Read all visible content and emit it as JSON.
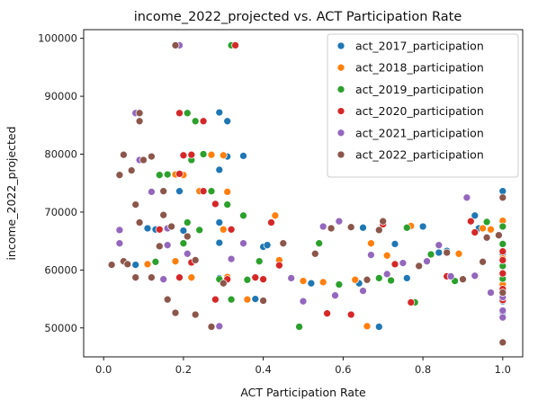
{
  "chart_data": {
    "type": "scatter",
    "title": "income_2022_projected vs. ACT Participation Rate",
    "xlabel": "ACT Participation Rate",
    "ylabel": "income_2022_projected",
    "xlim": [
      -0.05,
      1.05
    ],
    "ylim": [
      45000,
      101500
    ],
    "xticks": [
      0.0,
      0.2,
      0.4,
      0.6,
      0.8,
      1.0
    ],
    "xtick_labels": [
      "0.0",
      "0.2",
      "0.4",
      "0.6",
      "0.8",
      "1.0"
    ],
    "yticks": [
      50000,
      60000,
      70000,
      80000,
      90000,
      100000
    ],
    "ytick_labels": [
      "50000",
      "60000",
      "70000",
      "80000",
      "90000",
      "100000"
    ],
    "grid": false,
    "legend_position": "top-right",
    "series": [
      {
        "name": "act_2017_participation",
        "color": "#1f77b4",
        "points": [
          [
            0.29,
            87200
          ],
          [
            0.31,
            85700
          ],
          [
            0.18,
            76500
          ],
          [
            0.29,
            77300
          ],
          [
            0.31,
            79600
          ],
          [
            0.35,
            79700
          ],
          [
            0.19,
            73600
          ],
          [
            0.24,
            73600
          ],
          [
            0.11,
            67200
          ],
          [
            0.29,
            68200
          ],
          [
            0.13,
            67000
          ],
          [
            0.2,
            66800
          ],
          [
            0.24,
            66900
          ],
          [
            0.29,
            64700
          ],
          [
            0.38,
            55000
          ],
          [
            0.4,
            64000
          ],
          [
            0.41,
            64300
          ],
          [
            0.29,
            58600
          ],
          [
            0.08,
            60900
          ],
          [
            0.33,
            98800
          ],
          [
            0.52,
            57700
          ],
          [
            0.64,
            57700
          ],
          [
            0.65,
            67300
          ],
          [
            0.69,
            50200
          ],
          [
            0.73,
            64500
          ],
          [
            0.76,
            58600
          ],
          [
            0.8,
            67500
          ],
          [
            0.84,
            63000
          ],
          [
            0.86,
            63300
          ],
          [
            0.93,
            69400
          ],
          [
            0.94,
            67200
          ],
          [
            1.0,
            73600
          ],
          [
            1.0,
            68400
          ],
          [
            1.0,
            62800
          ],
          [
            1.0,
            60600
          ],
          [
            1.0,
            58400
          ],
          [
            1.0,
            56400
          ],
          [
            1.0,
            54600
          ],
          [
            1.0,
            52700
          ]
        ]
      },
      {
        "name": "act_2018_participation",
        "color": "#ff7f0e",
        "points": [
          [
            0.18,
            76500
          ],
          [
            0.2,
            76400
          ],
          [
            0.3,
            79800
          ],
          [
            0.27,
            79900
          ],
          [
            0.24,
            73600
          ],
          [
            0.31,
            73500
          ],
          [
            0.31,
            71400
          ],
          [
            0.3,
            67000
          ],
          [
            0.43,
            69400
          ],
          [
            0.18,
            61500
          ],
          [
            0.11,
            61000
          ],
          [
            0.22,
            58700
          ],
          [
            0.31,
            58800
          ],
          [
            0.36,
            54900
          ],
          [
            0.44,
            61700
          ],
          [
            0.5,
            58100
          ],
          [
            0.55,
            57900
          ],
          [
            0.63,
            58300
          ],
          [
            0.66,
            50300
          ],
          [
            0.67,
            64600
          ],
          [
            0.71,
            62500
          ],
          [
            0.77,
            67600
          ],
          [
            0.89,
            62800
          ],
          [
            0.95,
            67200
          ],
          [
            0.97,
            67000
          ],
          [
            1.0,
            68500
          ],
          [
            1.0,
            62000
          ],
          [
            1.0,
            59500
          ],
          [
            1.0,
            57500
          ],
          [
            1.0,
            55700
          ]
        ]
      },
      {
        "name": "act_2019_participation",
        "color": "#2ca02c",
        "points": [
          [
            0.32,
            98800
          ],
          [
            0.21,
            87100
          ],
          [
            0.23,
            85700
          ],
          [
            0.16,
            76500
          ],
          [
            0.14,
            76400
          ],
          [
            0.22,
            79000
          ],
          [
            0.25,
            80000
          ],
          [
            0.27,
            73600
          ],
          [
            0.28,
            71300
          ],
          [
            0.31,
            71300
          ],
          [
            0.35,
            69400
          ],
          [
            0.21,
            68200
          ],
          [
            0.24,
            66900
          ],
          [
            0.2,
            64600
          ],
          [
            0.13,
            61400
          ],
          [
            0.22,
            61300
          ],
          [
            0.29,
            58400
          ],
          [
            0.39,
            61500
          ],
          [
            0.36,
            58300
          ],
          [
            0.32,
            54900
          ],
          [
            0.49,
            50200
          ],
          [
            0.54,
            64600
          ],
          [
            0.59,
            57500
          ],
          [
            0.69,
            58600
          ],
          [
            0.72,
            58200
          ],
          [
            0.76,
            67300
          ],
          [
            0.78,
            54400
          ],
          [
            0.82,
            62700
          ],
          [
            0.88,
            58100
          ],
          [
            0.96,
            68300
          ],
          [
            1.0,
            67500
          ],
          [
            1.0,
            64500
          ],
          [
            1.0,
            60700
          ],
          [
            1.0,
            58500
          ],
          [
            1.0,
            56200
          ]
        ]
      },
      {
        "name": "act_2020_participation",
        "color": "#d62728",
        "points": [
          [
            0.33,
            98800
          ],
          [
            0.19,
            87100
          ],
          [
            0.25,
            85700
          ],
          [
            0.2,
            79800
          ],
          [
            0.19,
            76600
          ],
          [
            0.25,
            73600
          ],
          [
            0.22,
            79900
          ],
          [
            0.32,
            67000
          ],
          [
            0.28,
            71400
          ],
          [
            0.42,
            68200
          ],
          [
            0.14,
            67000
          ],
          [
            0.19,
            58700
          ],
          [
            0.22,
            61300
          ],
          [
            0.28,
            54900
          ],
          [
            0.31,
            58400
          ],
          [
            0.38,
            58700
          ],
          [
            0.44,
            60800
          ],
          [
            0.4,
            58400
          ],
          [
            0.56,
            52500
          ],
          [
            0.62,
            52300
          ],
          [
            0.66,
            58300
          ],
          [
            0.7,
            67900
          ],
          [
            0.73,
            61000
          ],
          [
            0.77,
            54400
          ],
          [
            0.86,
            58900
          ],
          [
            0.92,
            68400
          ],
          [
            0.93,
            66500
          ],
          [
            1.0,
            63200
          ],
          [
            1.0,
            61700
          ],
          [
            1.0,
            59400
          ],
          [
            1.0,
            56700
          ],
          [
            1.0,
            54800
          ],
          [
            1.0,
            51700
          ]
        ]
      },
      {
        "name": "act_2021_participation",
        "color": "#9467bd",
        "points": [
          [
            0.19,
            98800
          ],
          [
            0.08,
            87100
          ],
          [
            0.04,
            76400
          ],
          [
            0.09,
            79000
          ],
          [
            0.12,
            73500
          ],
          [
            0.16,
            67200
          ],
          [
            0.04,
            66900
          ],
          [
            0.04,
            64600
          ],
          [
            0.16,
            64300
          ],
          [
            0.06,
            61000
          ],
          [
            0.15,
            58400
          ],
          [
            0.21,
            62800
          ],
          [
            0.29,
            50300
          ],
          [
            0.32,
            61900
          ],
          [
            0.35,
            64600
          ],
          [
            0.47,
            58600
          ],
          [
            0.5,
            54600
          ],
          [
            0.55,
            67500
          ],
          [
            0.59,
            68400
          ],
          [
            0.58,
            55600
          ],
          [
            0.65,
            56400
          ],
          [
            0.67,
            62600
          ],
          [
            0.71,
            59300
          ],
          [
            0.75,
            61200
          ],
          [
            0.81,
            61500
          ],
          [
            0.84,
            64300
          ],
          [
            0.87,
            58900
          ],
          [
            0.91,
            72500
          ],
          [
            0.93,
            59000
          ],
          [
            0.97,
            56100
          ],
          [
            1.0,
            53000
          ],
          [
            1.0,
            51800
          ],
          [
            1.0,
            55300
          ]
        ]
      },
      {
        "name": "act_2022_participation",
        "color": "#8c564b",
        "points": [
          [
            0.18,
            98800
          ],
          [
            0.09,
            87100
          ],
          [
            0.09,
            85700
          ],
          [
            0.05,
            79900
          ],
          [
            0.04,
            76400
          ],
          [
            0.07,
            77200
          ],
          [
            0.1,
            79000
          ],
          [
            0.12,
            79600
          ],
          [
            0.08,
            71300
          ],
          [
            0.15,
            73600
          ],
          [
            0.09,
            68200
          ],
          [
            0.15,
            69500
          ],
          [
            0.17,
            67500
          ],
          [
            0.14,
            64100
          ],
          [
            0.05,
            61500
          ],
          [
            0.06,
            61000
          ],
          [
            0.02,
            60900
          ],
          [
            0.08,
            58700
          ],
          [
            0.12,
            58700
          ],
          [
            0.16,
            54900
          ],
          [
            0.21,
            65800
          ],
          [
            0.23,
            61700
          ],
          [
            0.18,
            52600
          ],
          [
            0.23,
            52300
          ],
          [
            0.3,
            57700
          ],
          [
            0.27,
            50200
          ],
          [
            0.4,
            54700
          ],
          [
            0.45,
            64600
          ],
          [
            0.53,
            62800
          ],
          [
            0.57,
            67200
          ],
          [
            0.62,
            67400
          ],
          [
            0.66,
            58300
          ],
          [
            0.7,
            68400
          ],
          [
            0.69,
            66900
          ],
          [
            0.79,
            60700
          ],
          [
            0.86,
            63000
          ],
          [
            0.9,
            58400
          ],
          [
            0.95,
            61400
          ],
          [
            0.96,
            65600
          ],
          [
            0.99,
            66000
          ],
          [
            1.0,
            72500
          ],
          [
            1.0,
            56100
          ],
          [
            1.0,
            47500
          ]
        ]
      }
    ]
  }
}
